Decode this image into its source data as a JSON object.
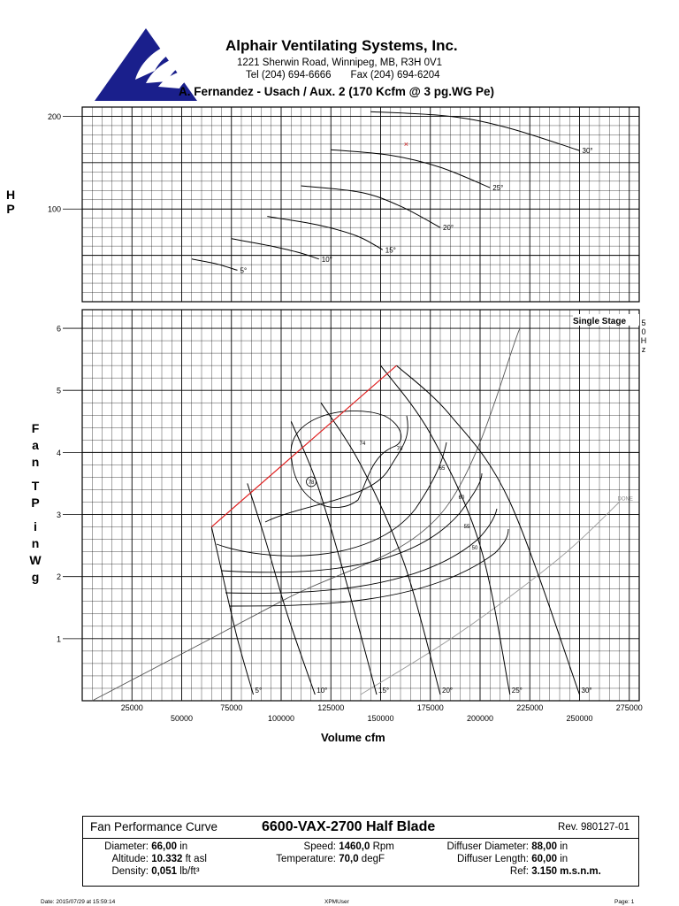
{
  "header": {
    "company": "Alphair Ventilating Systems, Inc.",
    "address": "1221 Sherwin Road, Winnipeg, MB, R3H 0V1",
    "tel": "Tel (204) 694-6666",
    "fax": "Fax (204) 694-6204",
    "title": "A. Fernandez - Usach / Aux. 2 (170 Kcfm @ 3 pg.WG Pe)"
  },
  "colors": {
    "grid": "#000000",
    "surge": "#e02020",
    "system": "#555555",
    "alt": "#9a9a9a",
    "logo": "#1a1f8c"
  },
  "chart_data": [
    {
      "type": "line",
      "name": "hp",
      "ylabel": "H P",
      "xlim": [
        0,
        280000
      ],
      "ylim": [
        0,
        210
      ],
      "yticks": [
        100,
        200
      ],
      "series": [
        {
          "name": "5°",
          "x": [
            55000,
            67000,
            78000
          ],
          "y": [
            46,
            41,
            34
          ]
        },
        {
          "name": "10°",
          "x": [
            75000,
            95000,
            109000,
            119000
          ],
          "y": [
            68,
            60,
            53,
            46
          ]
        },
        {
          "name": "15°",
          "x": [
            93000,
            118000,
            138000,
            151000
          ],
          "y": [
            92,
            83,
            71,
            56
          ]
        },
        {
          "name": "20°",
          "x": [
            110000,
            140000,
            160000,
            180000
          ],
          "y": [
            125,
            118,
            103,
            80
          ]
        },
        {
          "name": "25°",
          "x": [
            125000,
            155000,
            180000,
            205000
          ],
          "y": [
            164,
            158,
            145,
            123
          ]
        },
        {
          "name": "30°",
          "x": [
            145000,
            185000,
            215000,
            250000
          ],
          "y": [
            205,
            200,
            187,
            163
          ]
        }
      ],
      "series_labels": [
        "5°",
        "10°",
        "15°",
        "20°",
        "25°",
        "30°"
      ],
      "marker": {
        "x": 163000,
        "y": 170,
        "symbol": "×"
      }
    },
    {
      "type": "line",
      "name": "pressure",
      "ylabel": "Fan TP inWg",
      "xlabel": "Volume cfm",
      "xlim": [
        0,
        280000
      ],
      "ylim": [
        0,
        6.3
      ],
      "yticks": [
        1,
        2,
        3,
        4,
        5,
        6
      ],
      "xticks_row1": [
        25000,
        75000,
        125000,
        175000,
        225000,
        275000
      ],
      "xticks_row2": [
        50000,
        100000,
        150000,
        200000,
        250000
      ],
      "annotation_right": "Single Stage",
      "annotation_freq": [
        "5",
        "0",
        "H",
        "z"
      ],
      "blade_angles": [
        "5°",
        "10°",
        "15°",
        "20°",
        "25°",
        "30°"
      ],
      "blade_curves": [
        {
          "name": "5°",
          "x": [
            65000,
            70000,
            78000,
            86000
          ],
          "y": [
            2.8,
            2.1,
            1.0,
            0.1
          ]
        },
        {
          "name": "10°",
          "x": [
            83000,
            92000,
            103000,
            117000
          ],
          "y": [
            3.5,
            2.6,
            1.4,
            0.1
          ]
        },
        {
          "name": "15°",
          "x": [
            105000,
            118000,
            132000,
            148000
          ],
          "y": [
            4.5,
            3.5,
            2.0,
            0.1
          ]
        },
        {
          "name": "20°",
          "x": [
            120000,
            140000,
            162000,
            180000
          ],
          "y": [
            4.8,
            3.8,
            2.2,
            0.1
          ]
        },
        {
          "name": "25°",
          "x": [
            150000,
            175000,
            200000,
            215000
          ],
          "y": [
            5.4,
            4.3,
            2.5,
            0.1
          ]
        },
        {
          "name": "30°",
          "x": [
            158000,
            185000,
            215000,
            250000
          ],
          "y": [
            5.4,
            4.6,
            3.2,
            0.1
          ]
        }
      ],
      "surge_line": {
        "x": [
          65000,
          158000
        ],
        "y": [
          2.8,
          5.4
        ]
      },
      "efficiency_labels": [
        "74",
        "70",
        "65",
        "60",
        "55",
        "50",
        "78"
      ],
      "system_curve": {
        "x": [
          5000,
          100000,
          180000,
          220000
        ],
        "y": [
          0,
          1.6,
          3.0,
          6.0
        ]
      },
      "second_curve": {
        "x": [
          140000,
          190000,
          240000,
          270000
        ],
        "y": [
          0.1,
          1.1,
          2.3,
          3.2
        ]
      },
      "system_label": "DONE"
    }
  ],
  "specs": {
    "kind": "Fan Performance Curve",
    "model": "6600-VAX-2700 Half Blade",
    "rev": "Rev. 980127-01",
    "diameter_label": "Diameter:",
    "diameter_value": "66,00",
    "diameter_unit": "in",
    "altitude_label": "Altitude:",
    "altitude_value": "10.332",
    "altitude_unit": "ft asl",
    "density_label": "Density:",
    "density_value": "0,051",
    "density_unit": "lb/ft³",
    "speed_label": "Speed:",
    "speed_value": "1460,0",
    "speed_unit": "Rpm",
    "temperature_label": "Temperature:",
    "temperature_value": "70,0",
    "temperature_unit": "degF",
    "diffuser_diameter_label": "Diffuser Diameter:",
    "diffuser_diameter_value": "88,00",
    "diffuser_diameter_unit": "in",
    "diffuser_length_label": "Diffuser Length:",
    "diffuser_length_value": "60,00",
    "diffuser_length_unit": "in",
    "ref_label": "Ref:",
    "ref_value": "3.150 m.s.n.m."
  },
  "footer": {
    "date": "Date: 2015/07/29 at 15:59:14",
    "user": "XPMUser",
    "page": "Page: 1"
  }
}
